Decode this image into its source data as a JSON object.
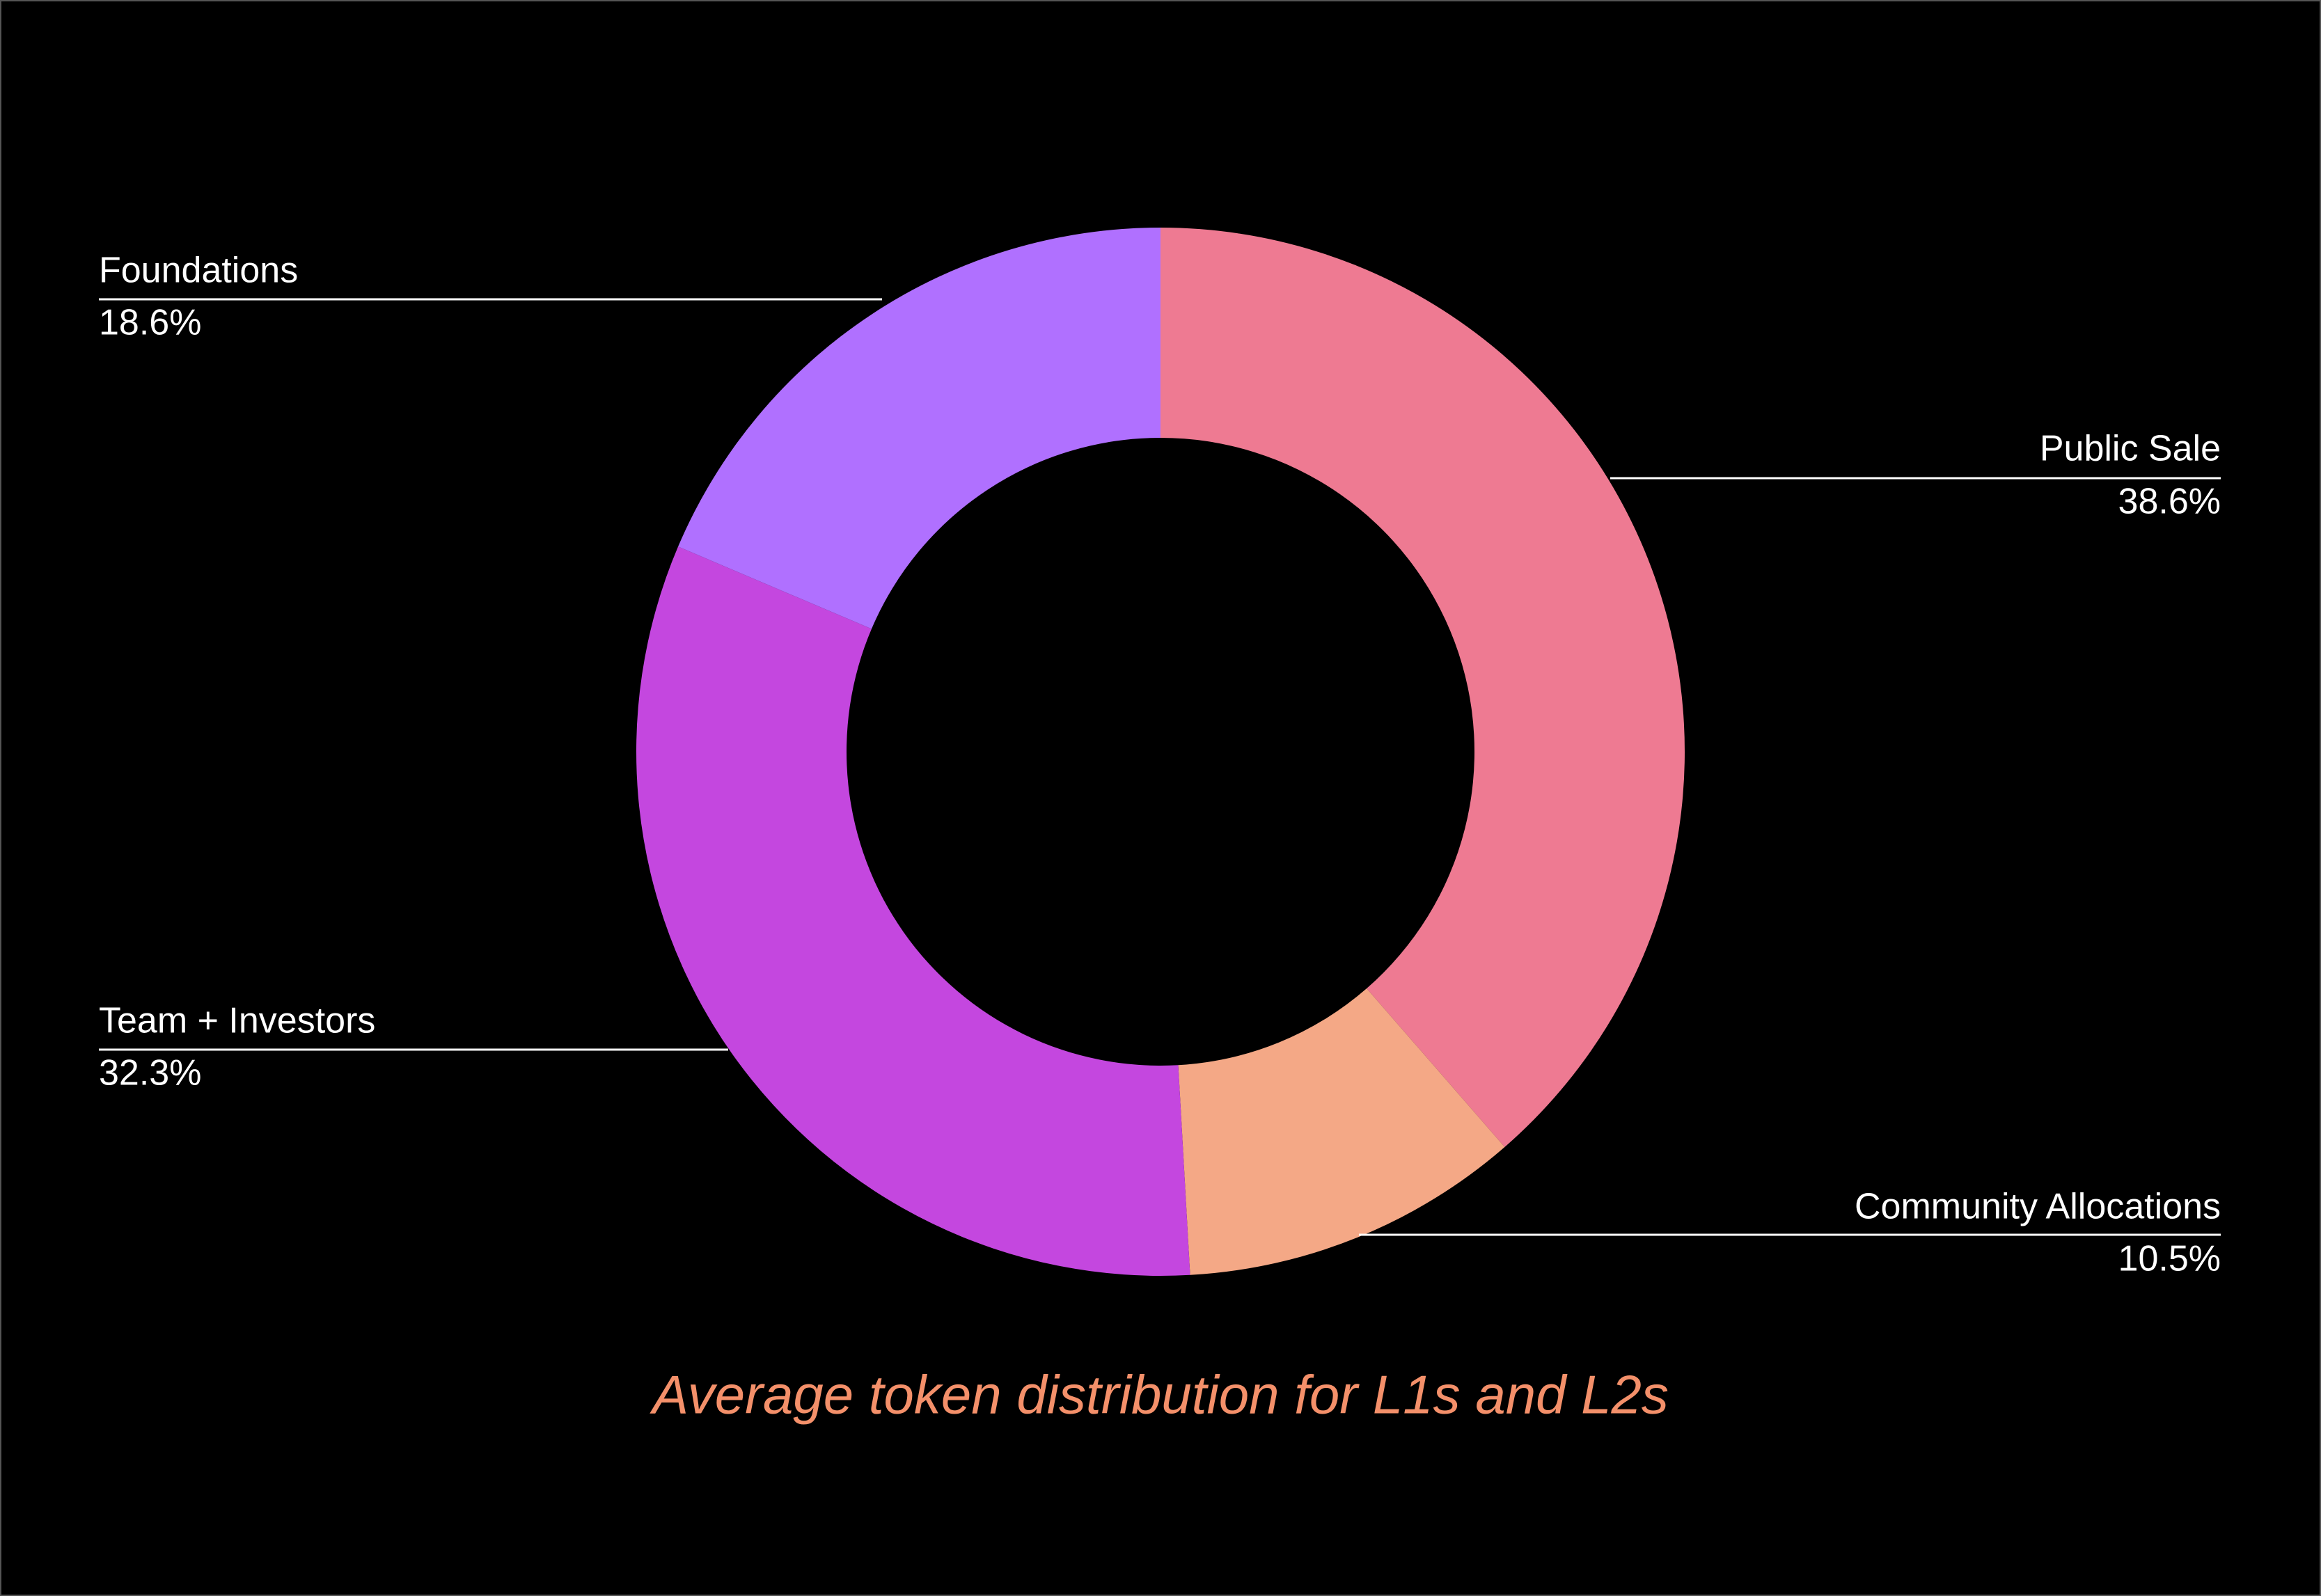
{
  "chart_data": {
    "type": "pie",
    "donut": true,
    "title": "Average token distribution for L1s and L2s",
    "categories": [
      "Public Sale",
      "Community Allocations",
      "Team + Investors",
      "Foundations"
    ],
    "values": [
      38.6,
      10.5,
      32.3,
      18.6
    ],
    "value_labels": [
      "38.6%",
      "10.5%",
      "32.3%",
      "18.6%"
    ],
    "colors": [
      "#ee7a92",
      "#f4a886",
      "#c447df",
      "#b070ff"
    ]
  }
}
